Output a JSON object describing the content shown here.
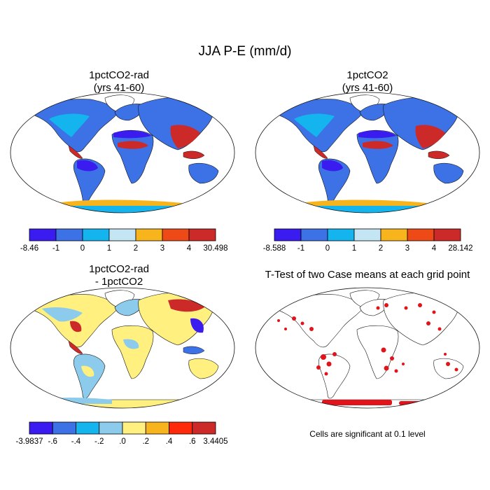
{
  "figure": {
    "title": "JJA P-E (mm/d)",
    "note": "Cells are significant at 0.1 level"
  },
  "panels": [
    {
      "id": "p1",
      "title_line1": "1pctCO2-rad",
      "title_line2": "(yrs 41-60)",
      "colorbar": {
        "colors": [
          "#3a1cf0",
          "#3d72e6",
          "#14b4ee",
          "#c4e6f4",
          "#f8b41c",
          "#ee4a18",
          "#cc2a28"
        ],
        "labels": [
          "-8.46",
          "-1",
          "0",
          "1",
          "2",
          "3",
          "4",
          "30.498"
        ]
      }
    },
    {
      "id": "p2",
      "title_line1": "1pctCO2",
      "title_line2": "(yrs 41-60)",
      "colorbar": {
        "colors": [
          "#3a1cf0",
          "#3d72e6",
          "#14b4ee",
          "#c4e6f4",
          "#f8b41c",
          "#ee4a18",
          "#cc2a28"
        ],
        "labels": [
          "-8.588",
          "-1",
          "0",
          "1",
          "2",
          "3",
          "4",
          "28.142"
        ]
      }
    },
    {
      "id": "p3",
      "title_line1": "1pctCO2-rad",
      "title_line2": "- 1pctCO2",
      "colorbar": {
        "colors": [
          "#3a1cf0",
          "#3d72e6",
          "#14b4ee",
          "#8ccbeb",
          "#fff080",
          "#f8b41c",
          "#ff2a0a",
          "#cc2a28"
        ],
        "labels": [
          "-3.9837",
          "-.6",
          "-.4",
          "-.2",
          ".0",
          ".2",
          ".4",
          ".6",
          "3.4405"
        ]
      }
    },
    {
      "id": "p4",
      "title_line1": "T-Test of two Case means at each grid point",
      "title_line2": ""
    }
  ]
}
